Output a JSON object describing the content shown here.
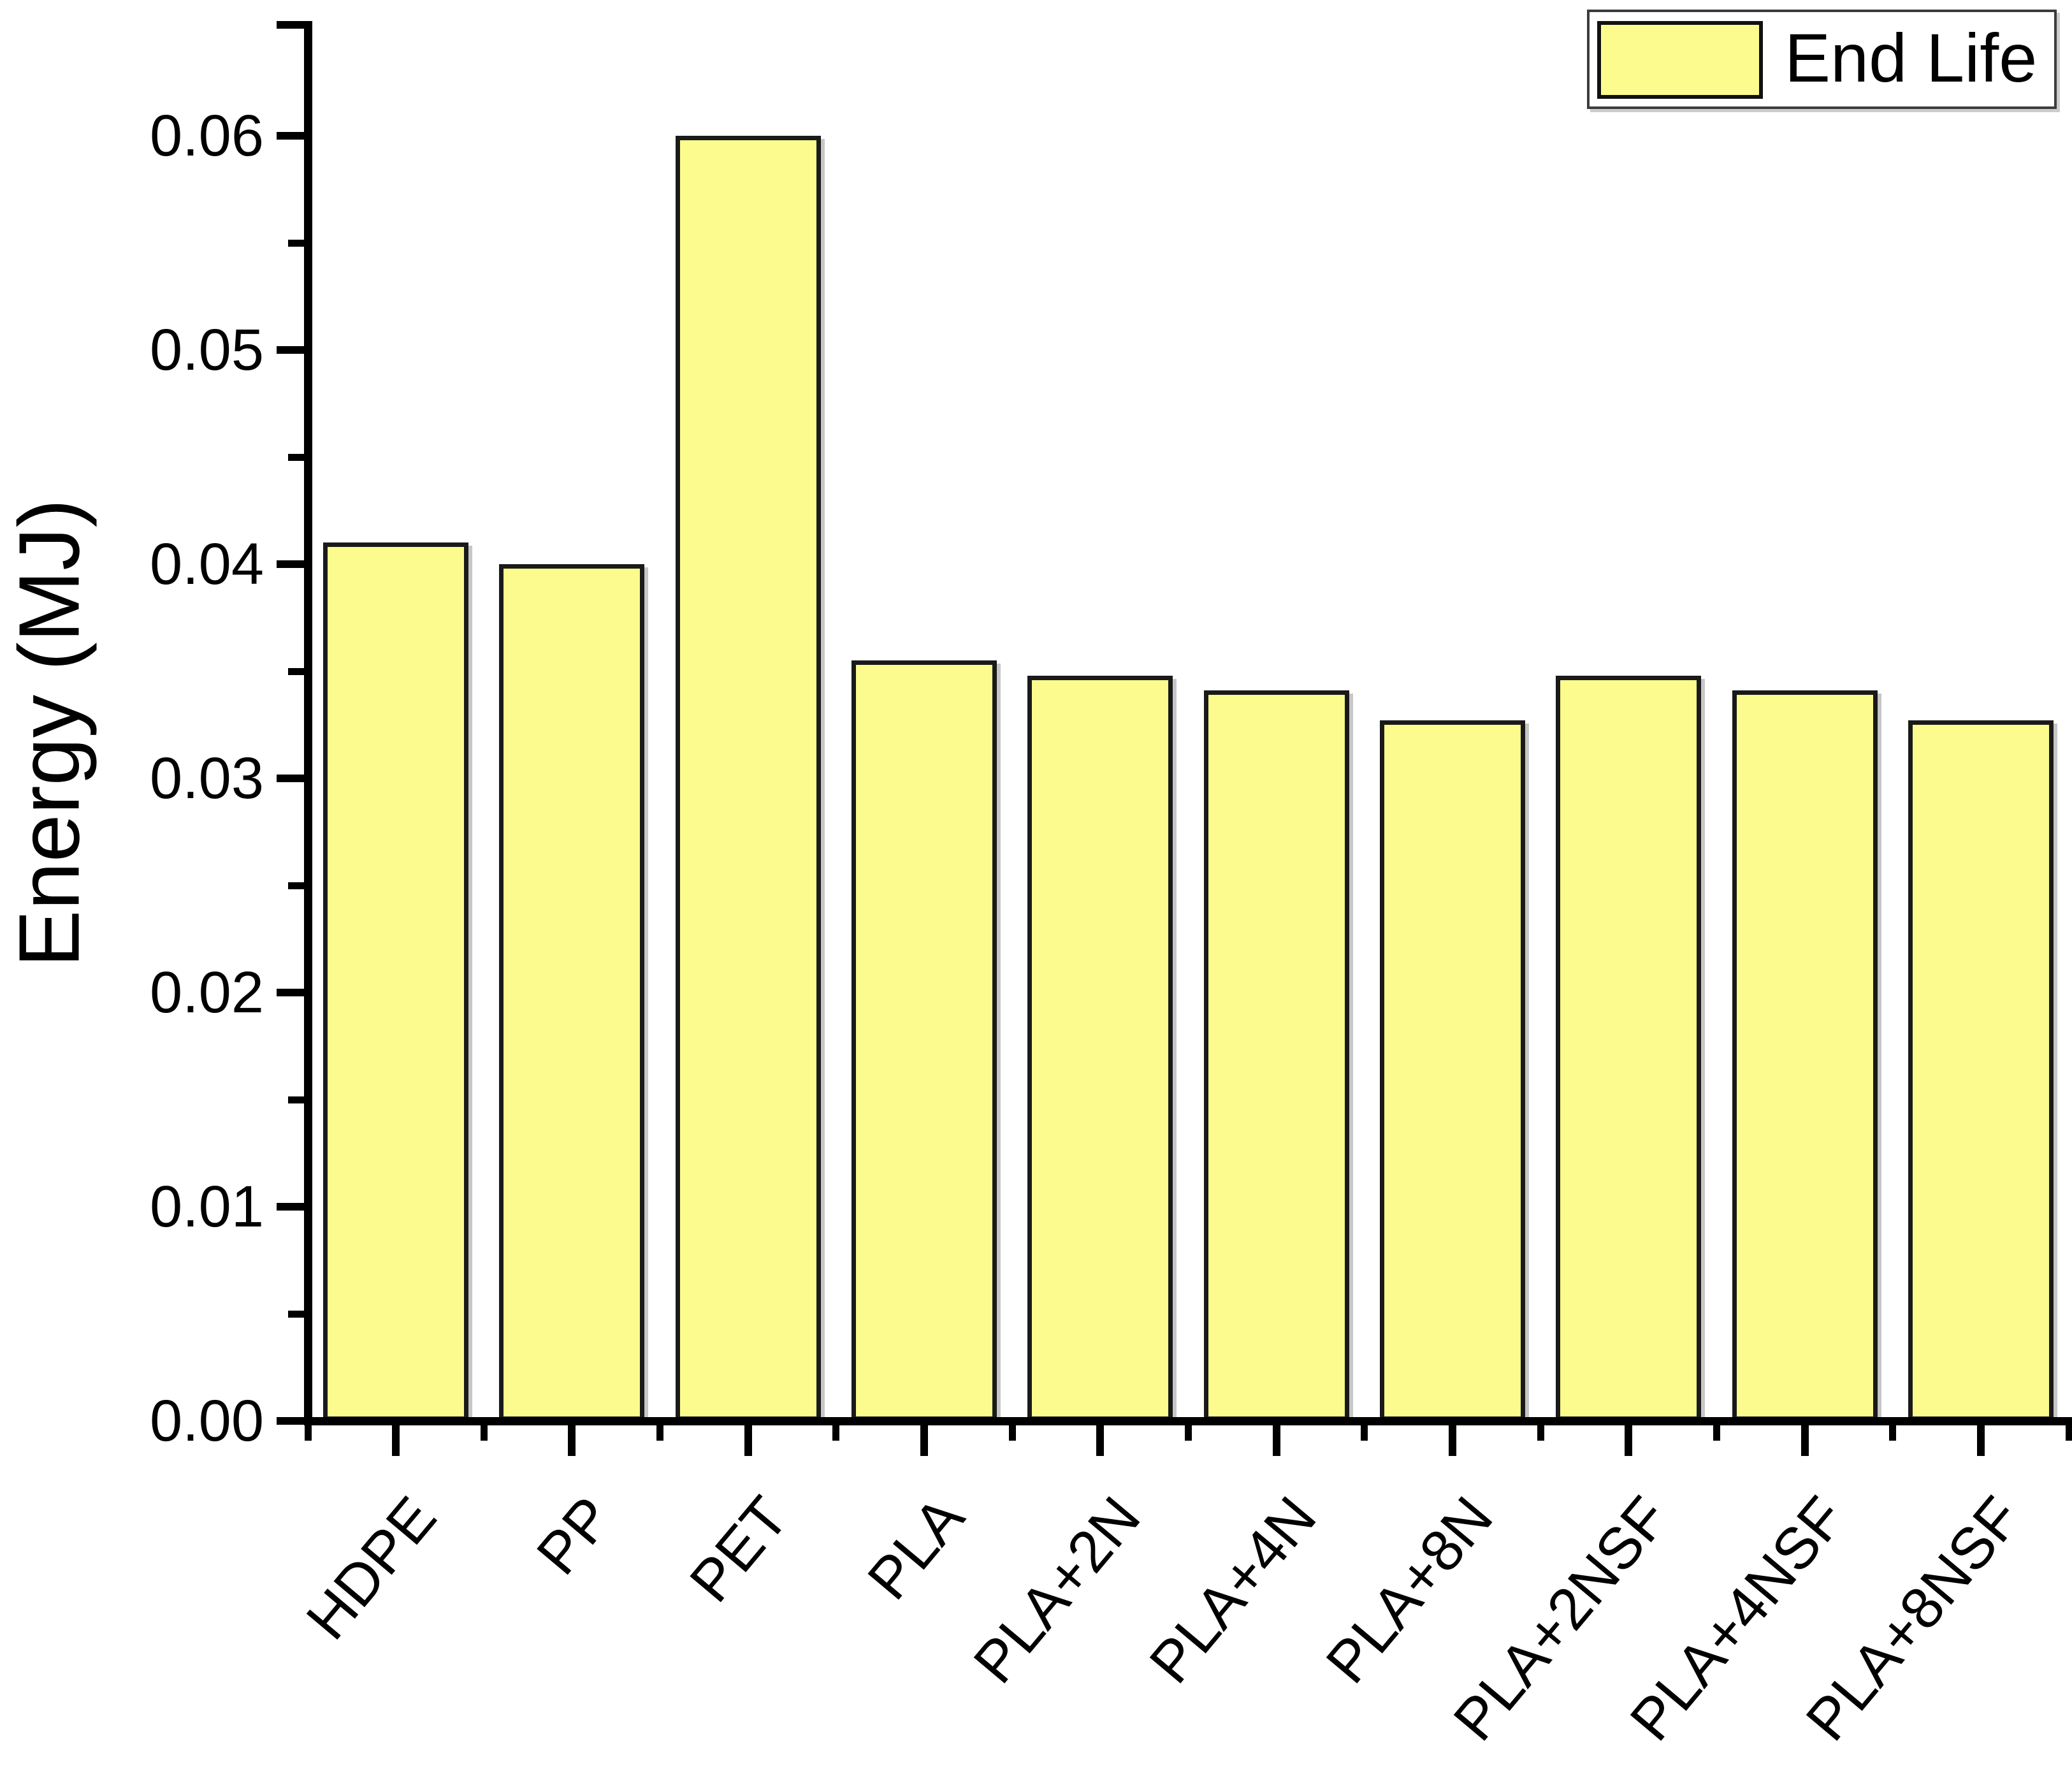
{
  "figure": {
    "background": "#FFFFFF"
  },
  "legend": {
    "label": "End Life",
    "swatch_color": "#FBFC8D",
    "position": "top-right"
  },
  "chart_data": {
    "type": "bar",
    "title": "",
    "xlabel": "",
    "ylabel": "Energy (MJ)",
    "categories": [
      "HDPE",
      "PP",
      "PET",
      "PLA",
      "PLA+2N",
      "PLA+4N",
      "PLA+8N",
      "PLA+2NSF",
      "PLA+4NSF",
      "PLA+8NSF"
    ],
    "series": [
      {
        "name": "End Life",
        "values": [
          0.041,
          0.04,
          0.06,
          0.0355,
          0.0348,
          0.0341,
          0.0327,
          0.0348,
          0.0341,
          0.0327
        ]
      }
    ],
    "ylim": [
      0,
      0.0653
    ],
    "y_tick_labels": [
      "0.00",
      "0.01",
      "0.02",
      "0.03",
      "0.04",
      "0.05",
      "0.06"
    ],
    "y_major_tick_step": 0.01,
    "y_minor_tick_step": 0.005,
    "grid": false,
    "legend_position": "top-right",
    "bar_fill": "#FBFC8D",
    "bar_border": "#1A1A1A",
    "axis_color": "#000000",
    "x_label_rotation_deg": -50
  }
}
